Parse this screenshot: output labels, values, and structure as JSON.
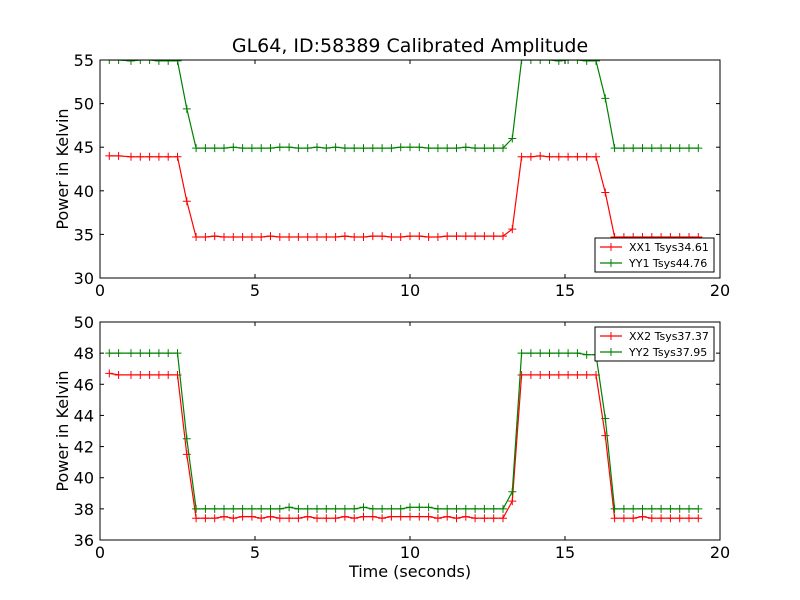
{
  "chart_data": [
    {
      "type": "line",
      "title": "GL64, ID:58389 Calibrated Amplitude",
      "xlabel": "",
      "ylabel": "Power in Kelvin",
      "xlim": [
        0,
        20
      ],
      "ylim": [
        30,
        55
      ],
      "xticks": [
        "0",
        "5",
        "10",
        "15",
        "20"
      ],
      "yticks": [
        "30",
        "35",
        "40",
        "45",
        "50",
        "55"
      ],
      "grid": false,
      "legend_position": "bottom-right",
      "series": [
        {
          "name": "XX1 Tsys34.61",
          "color": "#ff0000",
          "x": [
            0.3,
            0.6,
            1.0,
            1.3,
            1.6,
            1.9,
            2.2,
            2.5,
            2.8,
            3.1,
            3.4,
            3.7,
            4.0,
            4.3,
            4.6,
            4.9,
            5.2,
            5.5,
            5.8,
            6.1,
            6.4,
            6.7,
            7.0,
            7.3,
            7.6,
            7.9,
            8.2,
            8.5,
            8.8,
            9.1,
            9.4,
            9.7,
            10.0,
            10.3,
            10.6,
            10.9,
            11.2,
            11.5,
            11.8,
            12.1,
            12.4,
            12.7,
            13.0,
            13.3,
            13.6,
            13.9,
            14.2,
            14.5,
            14.8,
            15.1,
            15.4,
            15.7,
            16.0,
            16.3,
            16.6,
            16.9,
            17.2,
            17.5,
            17.8,
            18.1,
            18.4,
            18.7,
            19.0,
            19.3
          ],
          "values": [
            44.0,
            44.0,
            43.9,
            43.9,
            43.9,
            43.9,
            43.9,
            43.9,
            38.8,
            34.7,
            34.7,
            34.8,
            34.7,
            34.7,
            34.7,
            34.7,
            34.7,
            34.8,
            34.7,
            34.7,
            34.7,
            34.7,
            34.7,
            34.7,
            34.7,
            34.8,
            34.7,
            34.7,
            34.8,
            34.8,
            34.7,
            34.7,
            34.8,
            34.8,
            34.7,
            34.7,
            34.8,
            34.8,
            34.8,
            34.8,
            34.8,
            34.8,
            34.8,
            35.6,
            43.9,
            43.9,
            44.0,
            43.9,
            43.9,
            43.9,
            43.9,
            43.9,
            43.9,
            39.8,
            34.7,
            34.7,
            34.7,
            34.7,
            34.7,
            34.7,
            34.7,
            34.7,
            34.7,
            34.7
          ]
        },
        {
          "name": "YY1 Tsys44.76",
          "color": "#008000",
          "x": [
            0.3,
            0.6,
            1.0,
            1.3,
            1.6,
            1.9,
            2.2,
            2.5,
            2.8,
            3.1,
            3.4,
            3.7,
            4.0,
            4.3,
            4.6,
            4.9,
            5.2,
            5.5,
            5.8,
            6.1,
            6.4,
            6.7,
            7.0,
            7.3,
            7.6,
            7.9,
            8.2,
            8.5,
            8.8,
            9.1,
            9.4,
            9.7,
            10.0,
            10.3,
            10.6,
            10.9,
            11.2,
            11.5,
            11.8,
            12.1,
            12.4,
            12.7,
            13.0,
            13.3,
            13.6,
            13.9,
            14.2,
            14.5,
            14.8,
            15.1,
            15.4,
            15.7,
            16.0,
            16.3,
            16.6,
            16.9,
            17.2,
            17.5,
            17.8,
            18.1,
            18.4,
            18.7,
            19.0,
            19.3
          ],
          "values": [
            55.0,
            55.0,
            54.9,
            55.0,
            55.0,
            54.9,
            54.9,
            54.9,
            49.4,
            44.9,
            44.9,
            44.9,
            44.9,
            45.0,
            44.9,
            44.9,
            44.9,
            44.9,
            45.0,
            45.0,
            44.9,
            44.9,
            45.0,
            44.9,
            45.0,
            44.9,
            44.9,
            44.9,
            44.9,
            44.9,
            44.9,
            45.0,
            45.0,
            45.0,
            44.9,
            44.9,
            44.9,
            44.9,
            45.0,
            44.9,
            44.9,
            44.9,
            44.9,
            46.0,
            55.0,
            55.0,
            55.0,
            55.0,
            54.9,
            55.0,
            55.0,
            54.9,
            54.9,
            50.6,
            44.9,
            44.9,
            44.9,
            44.9,
            44.9,
            44.9,
            44.9,
            44.9,
            44.9,
            44.9
          ]
        }
      ]
    },
    {
      "type": "line",
      "title": "",
      "xlabel": "Time (seconds)",
      "ylabel": "Power in Kelvin",
      "xlim": [
        0,
        20
      ],
      "ylim": [
        36,
        50
      ],
      "xticks": [
        "0",
        "5",
        "10",
        "15",
        "20"
      ],
      "yticks": [
        "36",
        "38",
        "40",
        "42",
        "44",
        "46",
        "48",
        "50"
      ],
      "grid": false,
      "legend_position": "top-right",
      "series": [
        {
          "name": "XX2 Tsys37.37",
          "color": "#ff0000",
          "x": [
            0.3,
            0.6,
            1.0,
            1.3,
            1.6,
            1.9,
            2.2,
            2.5,
            2.8,
            3.1,
            3.4,
            3.7,
            4.0,
            4.3,
            4.6,
            4.9,
            5.2,
            5.5,
            5.8,
            6.1,
            6.4,
            6.7,
            7.0,
            7.3,
            7.6,
            7.9,
            8.2,
            8.5,
            8.8,
            9.1,
            9.4,
            9.7,
            10.0,
            10.3,
            10.6,
            10.9,
            11.2,
            11.5,
            11.8,
            12.1,
            12.4,
            12.7,
            13.0,
            13.3,
            13.6,
            13.9,
            14.2,
            14.5,
            14.8,
            15.1,
            15.4,
            15.7,
            16.0,
            16.3,
            16.6,
            16.9,
            17.2,
            17.5,
            17.8,
            18.1,
            18.4,
            18.7,
            19.0,
            19.3
          ],
          "values": [
            46.7,
            46.6,
            46.6,
            46.6,
            46.6,
            46.6,
            46.6,
            46.6,
            41.5,
            37.4,
            37.4,
            37.4,
            37.5,
            37.4,
            37.5,
            37.5,
            37.4,
            37.5,
            37.4,
            37.4,
            37.4,
            37.5,
            37.4,
            37.4,
            37.4,
            37.5,
            37.4,
            37.5,
            37.5,
            37.4,
            37.5,
            37.5,
            37.5,
            37.5,
            37.5,
            37.4,
            37.5,
            37.4,
            37.5,
            37.4,
            37.4,
            37.4,
            37.4,
            38.5,
            46.6,
            46.6,
            46.6,
            46.6,
            46.6,
            46.6,
            46.6,
            46.6,
            46.6,
            42.7,
            37.4,
            37.4,
            37.4,
            37.5,
            37.4,
            37.4,
            37.4,
            37.4,
            37.4,
            37.4
          ]
        },
        {
          "name": "YY2 Tsys37.95",
          "color": "#008000",
          "x": [
            0.3,
            0.6,
            1.0,
            1.3,
            1.6,
            1.9,
            2.2,
            2.5,
            2.8,
            3.1,
            3.4,
            3.7,
            4.0,
            4.3,
            4.6,
            4.9,
            5.2,
            5.5,
            5.8,
            6.1,
            6.4,
            6.7,
            7.0,
            7.3,
            7.6,
            7.9,
            8.2,
            8.5,
            8.8,
            9.1,
            9.4,
            9.7,
            10.0,
            10.3,
            10.6,
            10.9,
            11.2,
            11.5,
            11.8,
            12.1,
            12.4,
            12.7,
            13.0,
            13.3,
            13.6,
            13.9,
            14.2,
            14.5,
            14.8,
            15.1,
            15.4,
            15.7,
            16.0,
            16.3,
            16.6,
            16.9,
            17.2,
            17.5,
            17.8,
            18.1,
            18.4,
            18.7,
            19.0,
            19.3
          ],
          "values": [
            48.0,
            48.0,
            48.0,
            48.0,
            48.0,
            48.0,
            48.0,
            48.0,
            42.5,
            38.0,
            38.0,
            38.0,
            38.0,
            38.0,
            38.0,
            38.0,
            38.0,
            38.0,
            38.0,
            38.1,
            38.0,
            38.0,
            38.0,
            38.0,
            38.0,
            38.0,
            38.0,
            38.1,
            38.0,
            38.0,
            38.0,
            38.0,
            38.1,
            38.1,
            38.1,
            38.0,
            38.0,
            38.0,
            38.0,
            38.0,
            38.0,
            38.0,
            38.0,
            39.1,
            48.0,
            48.0,
            48.0,
            48.0,
            48.0,
            48.0,
            48.0,
            47.9,
            47.9,
            43.8,
            38.0,
            38.0,
            38.0,
            38.0,
            38.0,
            38.0,
            38.0,
            38.0,
            38.0,
            38.0
          ]
        }
      ]
    }
  ]
}
